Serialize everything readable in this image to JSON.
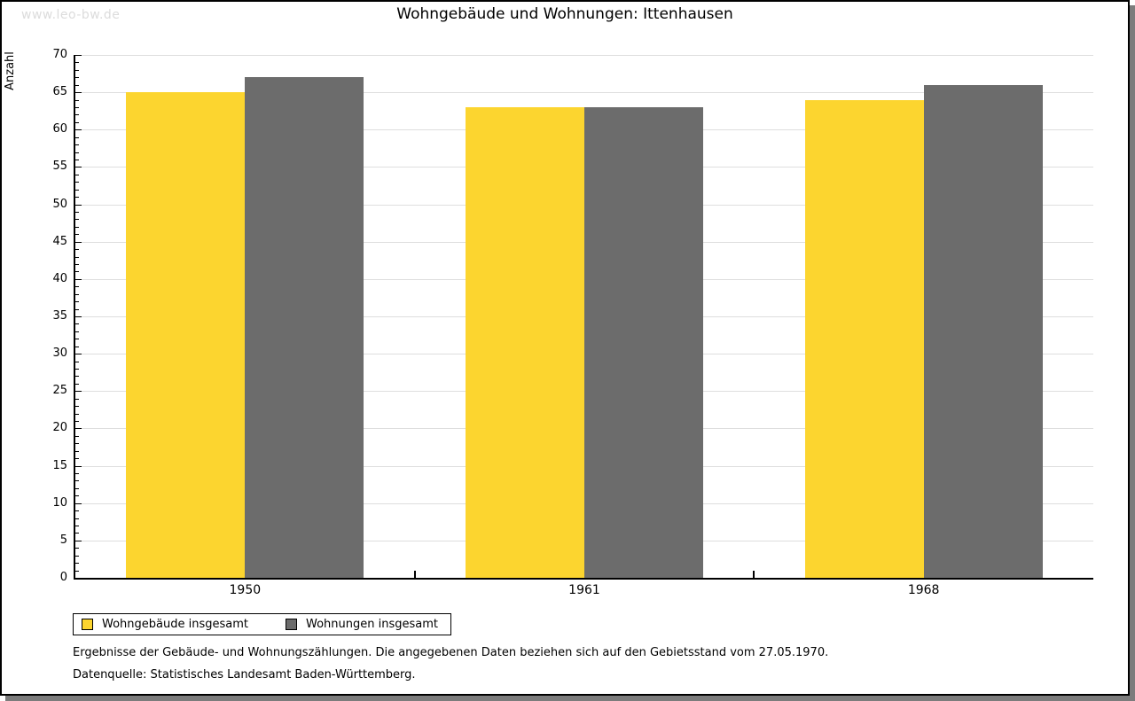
{
  "watermark": "www.leo-bw.de",
  "chart_data": {
    "type": "bar",
    "title": "Wohngebäude und Wohnungen: Ittenhausen",
    "ylabel": "Anzahl",
    "xlabel": "",
    "categories": [
      "1950",
      "1961",
      "1968"
    ],
    "series": [
      {
        "name": "Wohngebäude insgesamt",
        "color": "#FCD52F",
        "values": [
          65,
          63,
          64
        ]
      },
      {
        "name": "Wohnungen insgesamt",
        "color": "#6C6C6C",
        "values": [
          67,
          63,
          66
        ]
      }
    ],
    "ylim": [
      0,
      70
    ],
    "ytick_step": 5,
    "minor_tick_step": 1,
    "grid": true,
    "gridline_color": "#DEDEDE",
    "legend_position": "bottom-left"
  },
  "footnotes": [
    "Ergebnisse der Gebäude- und Wohnungszählungen. Die angegebenen Daten beziehen sich auf den Gebietsstand vom 27.05.1970.",
    "Datenquelle: Statistisches Landesamt Baden-Württemberg."
  ]
}
